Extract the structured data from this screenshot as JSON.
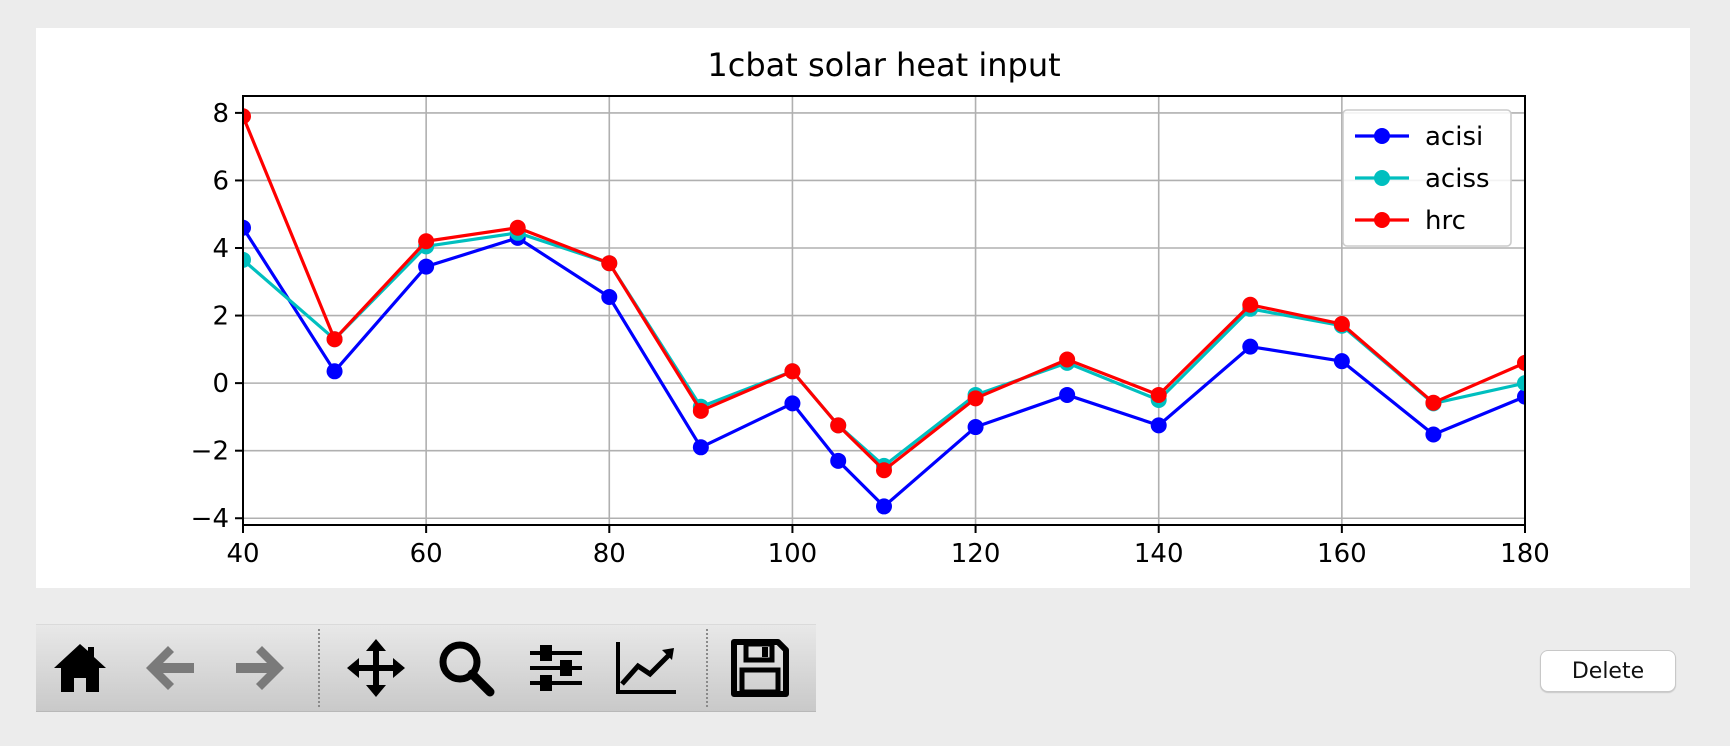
{
  "toolbar": {
    "buttons": [
      {
        "name": "home-button",
        "icon": "home-icon"
      },
      {
        "name": "back-button",
        "icon": "arrow-left-icon"
      },
      {
        "name": "forward-button",
        "icon": "arrow-right-icon"
      },
      {
        "name": "pan-button",
        "icon": "move-icon"
      },
      {
        "name": "zoom-button",
        "icon": "magnifier-icon"
      },
      {
        "name": "subplots-button",
        "icon": "sliders-icon"
      },
      {
        "name": "edit-axes-button",
        "icon": "line-chart-icon"
      },
      {
        "name": "save-button",
        "icon": "floppy-disk-icon"
      }
    ]
  },
  "delete_label": "Delete",
  "chart_data": {
    "type": "line",
    "title": "1cbat solar heat input",
    "xlabel": "",
    "ylabel": "",
    "xlim": [
      40,
      180
    ],
    "ylim": [
      -4.2,
      8.5
    ],
    "xticks": [
      40,
      60,
      80,
      100,
      120,
      140,
      160,
      180
    ],
    "yticks": [
      -4,
      -2,
      0,
      2,
      4,
      6,
      8
    ],
    "ytick_labels": [
      "−4",
      "−2",
      "0",
      "2",
      "4",
      "6",
      "8"
    ],
    "grid": true,
    "legend_position": "top-right",
    "x": [
      40,
      50,
      60,
      70,
      80,
      90,
      100,
      105,
      110,
      120,
      130,
      140,
      150,
      160,
      170,
      180
    ],
    "series": [
      {
        "name": "acisi",
        "color": "#0000ff",
        "values": [
          4.6,
          0.35,
          3.45,
          4.3,
          2.55,
          -1.9,
          -0.6,
          -2.3,
          -3.65,
          -1.3,
          -0.35,
          -1.25,
          1.08,
          0.65,
          -1.52,
          -0.4
        ]
      },
      {
        "name": "aciss",
        "color": "#00bfbf",
        "values": [
          3.65,
          1.3,
          4.05,
          4.45,
          3.55,
          -0.7,
          0.35,
          -1.25,
          -2.45,
          -0.35,
          0.6,
          -0.5,
          2.2,
          1.7,
          -0.6,
          0.0
        ]
      },
      {
        "name": "hrc",
        "color": "#ff0000",
        "values": [
          7.9,
          1.3,
          4.2,
          4.6,
          3.55,
          -0.82,
          0.35,
          -1.25,
          -2.58,
          -0.45,
          0.7,
          -0.35,
          2.32,
          1.75,
          -0.58,
          0.6
        ]
      }
    ]
  }
}
